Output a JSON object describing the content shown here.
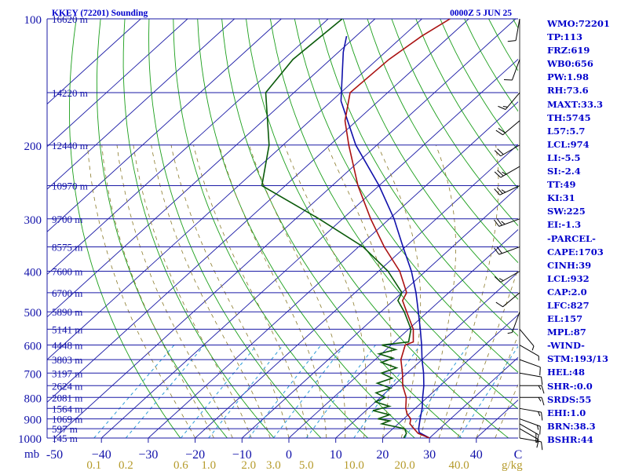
{
  "chart_data": {
    "type": "skew-t sounding",
    "title": "KKEY (72201) Sounding",
    "valid_time": "0000Z  5 JUN 25",
    "colors": {
      "background": "#ffffff",
      "isobars": "#1a1aa6",
      "skewed_isotherms": "#1a1aa6",
      "dry_adiabats": "#1a9e1a",
      "mixing_ratio": "#2a9ad6",
      "moist_adiabats": "#8a7a2a",
      "temperature": "#aa1111",
      "dewpoint": "#0a5a0a",
      "parcel": "#1010aa",
      "axis_text_blue": "#1111aa",
      "axis_text_gold": "#b59a2a",
      "wind_barbs": "#000000"
    },
    "isobars": [
      {
        "p": 100,
        "pressure_label": "100",
        "height_label": "16620 m"
      },
      {
        "p": 150,
        "pressure_label": "",
        "height_label": "14220 m"
      },
      {
        "p": 200,
        "pressure_label": "200",
        "height_label": "12440 m"
      },
      {
        "p": 250,
        "pressure_label": "",
        "height_label": "10970 m"
      },
      {
        "p": 300,
        "pressure_label": "300",
        "height_label": "9700 m"
      },
      {
        "p": 350,
        "pressure_label": "",
        "height_label": "8575 m"
      },
      {
        "p": 400,
        "pressure_label": "400",
        "height_label": "7600 m"
      },
      {
        "p": 450,
        "pressure_label": "",
        "height_label": "6700 m"
      },
      {
        "p": 500,
        "pressure_label": "500",
        "height_label": "5890 m"
      },
      {
        "p": 550,
        "pressure_label": "",
        "height_label": "5141 m"
      },
      {
        "p": 600,
        "pressure_label": "600",
        "height_label": "4448 m"
      },
      {
        "p": 650,
        "pressure_label": "",
        "height_label": "3803 m"
      },
      {
        "p": 700,
        "pressure_label": "700",
        "height_label": "3197 m"
      },
      {
        "p": 750,
        "pressure_label": "",
        "height_label": "2624 m"
      },
      {
        "p": 800,
        "pressure_label": "800",
        "height_label": "2081 m"
      },
      {
        "p": 850,
        "pressure_label": "",
        "height_label": "1564 m"
      },
      {
        "p": 900,
        "pressure_label": "900",
        "height_label": "1069 m"
      },
      {
        "p": 950,
        "pressure_label": "",
        "height_label": "597 m"
      },
      {
        "p": 1000,
        "pressure_label": "1000",
        "height_label": "145 m"
      }
    ],
    "pressure_axis_unit": "mb",
    "temperature_ticks": [
      {
        "t": -50,
        "label": "-50"
      },
      {
        "t": -40,
        "label": "−40"
      },
      {
        "t": -30,
        "label": "−30"
      },
      {
        "t": -20,
        "label": "−20"
      },
      {
        "t": -10,
        "label": "−10"
      },
      {
        "t": 0,
        "label": "0"
      },
      {
        "t": 10,
        "label": "10"
      },
      {
        "t": 20,
        "label": "20"
      },
      {
        "t": 30,
        "label": "30"
      },
      {
        "t": 40,
        "label": "40"
      }
    ],
    "temperature_unit": "C",
    "mixing_ratio_ticks": [
      {
        "w": 0.1,
        "label": "0.1"
      },
      {
        "w": 0.2,
        "label": "0.2"
      },
      {
        "w": 0.6,
        "label": "0.6"
      },
      {
        "w": 1.0,
        "label": "1.0"
      },
      {
        "w": 2.0,
        "label": "2.0"
      },
      {
        "w": 3.0,
        "label": "3.0"
      },
      {
        "w": 5.0,
        "label": "5.0"
      },
      {
        "w": 10.0,
        "label": "10.0"
      },
      {
        "w": 20.0,
        "label": "20.0"
      },
      {
        "w": 40.0,
        "label": "40.0"
      }
    ],
    "mixing_ratio_unit": "g/kg",
    "temperature_profile": [
      {
        "p": 1000,
        "t": 30
      },
      {
        "p": 975,
        "t": 26.5
      },
      {
        "p": 950,
        "t": 24.5
      },
      {
        "p": 925,
        "t": 22.5
      },
      {
        "p": 900,
        "t": 21.5
      },
      {
        "p": 875,
        "t": 19.5
      },
      {
        "p": 850,
        "t": 18.0
      },
      {
        "p": 800,
        "t": 15.5
      },
      {
        "p": 750,
        "t": 12.0
      },
      {
        "p": 700,
        "t": 9.0
      },
      {
        "p": 650,
        "t": 5.5
      },
      {
        "p": 600,
        "t": 3.0
      },
      {
        "p": 590,
        "t": 4.0
      },
      {
        "p": 550,
        "t": 1.0
      },
      {
        "p": 500,
        "t": -4.5
      },
      {
        "p": 470,
        "t": -8.0
      },
      {
        "p": 450,
        "t": -9.0
      },
      {
        "p": 400,
        "t": -15.5
      },
      {
        "p": 350,
        "t": -24.5
      },
      {
        "p": 300,
        "t": -34.0
      },
      {
        "p": 250,
        "t": -44.5
      },
      {
        "p": 200,
        "t": -56.0
      },
      {
        "p": 175,
        "t": -62.5
      },
      {
        "p": 150,
        "t": -68.0
      },
      {
        "p": 125,
        "t": -67.5
      },
      {
        "p": 110,
        "t": -66.0
      },
      {
        "p": 100,
        "t": -64.0
      }
    ],
    "dewpoint_profile": [
      {
        "p": 1000,
        "t": 24.5
      },
      {
        "p": 975,
        "t": 24.0
      },
      {
        "p": 950,
        "t": 22.5
      },
      {
        "p": 925,
        "t": 16.5
      },
      {
        "p": 910,
        "t": 17.5
      },
      {
        "p": 900,
        "t": 14.5
      },
      {
        "p": 880,
        "t": 16.0
      },
      {
        "p": 860,
        "t": 11.5
      },
      {
        "p": 840,
        "t": 14.0
      },
      {
        "p": 820,
        "t": 10.0
      },
      {
        "p": 800,
        "t": 11.0
      },
      {
        "p": 780,
        "t": 8.0
      },
      {
        "p": 760,
        "t": 10.0
      },
      {
        "p": 740,
        "t": 6.0
      },
      {
        "p": 720,
        "t": 8.0
      },
      {
        "p": 700,
        "t": 4.5
      },
      {
        "p": 680,
        "t": 6.5
      },
      {
        "p": 660,
        "t": 2.0
      },
      {
        "p": 645,
        "t": 3.5
      },
      {
        "p": 630,
        "t": -0.5
      },
      {
        "p": 615,
        "t": 2.0
      },
      {
        "p": 600,
        "t": -2.0
      },
      {
        "p": 590,
        "t": 3.0
      },
      {
        "p": 550,
        "t": 0.5
      },
      {
        "p": 500,
        "t": -5.0
      },
      {
        "p": 470,
        "t": -9.0
      },
      {
        "p": 450,
        "t": -10.0
      },
      {
        "p": 400,
        "t": -18.0
      },
      {
        "p": 350,
        "t": -29.0
      },
      {
        "p": 300,
        "t": -45.0
      },
      {
        "p": 250,
        "t": -65.0
      },
      {
        "p": 200,
        "t": -73.0
      },
      {
        "p": 150,
        "t": -86.0
      },
      {
        "p": 125,
        "t": -88.0
      },
      {
        "p": 100,
        "t": -87.0
      }
    ],
    "parcel_profile": [
      {
        "p": 1000,
        "t": 30
      },
      {
        "p": 970,
        "t": 26.5
      },
      {
        "p": 950,
        "t": 25.5
      },
      {
        "p": 900,
        "t": 23.5
      },
      {
        "p": 850,
        "t": 21.5
      },
      {
        "p": 800,
        "t": 19.0
      },
      {
        "p": 750,
        "t": 16.5
      },
      {
        "p": 700,
        "t": 13.5
      },
      {
        "p": 650,
        "t": 10.0
      },
      {
        "p": 600,
        "t": 6.5
      },
      {
        "p": 550,
        "t": 2.5
      },
      {
        "p": 500,
        "t": -2.0
      },
      {
        "p": 450,
        "t": -7.0
      },
      {
        "p": 400,
        "t": -13.0
      },
      {
        "p": 350,
        "t": -20.5
      },
      {
        "p": 300,
        "t": -29.0
      },
      {
        "p": 250,
        "t": -40.0
      },
      {
        "p": 200,
        "t": -54.5
      },
      {
        "p": 157,
        "t": -68.0
      },
      {
        "p": 120,
        "t": -79.0
      },
      {
        "p": 110,
        "t": -82.0
      }
    ],
    "wind_barbs": [
      {
        "p": 1000,
        "dir": 100,
        "spd": 10
      },
      {
        "p": 950,
        "dir": 120,
        "spd": 15
      },
      {
        "p": 925,
        "dir": 120,
        "spd": 15
      },
      {
        "p": 900,
        "dir": 110,
        "spd": 15
      },
      {
        "p": 850,
        "dir": 100,
        "spd": 15
      },
      {
        "p": 800,
        "dir": 90,
        "spd": 15
      },
      {
        "p": 750,
        "dir": 90,
        "spd": 15
      },
      {
        "p": 700,
        "dir": 100,
        "spd": 10
      },
      {
        "p": 650,
        "dir": 110,
        "spd": 10
      },
      {
        "p": 600,
        "dir": 120,
        "spd": 5
      },
      {
        "p": 550,
        "dir": 140,
        "spd": 5
      },
      {
        "p": 500,
        "dir": 200,
        "spd": 5
      },
      {
        "p": 450,
        "dir": 230,
        "spd": 10
      },
      {
        "p": 400,
        "dir": 240,
        "spd": 15
      },
      {
        "p": 350,
        "dir": 250,
        "spd": 20
      },
      {
        "p": 300,
        "dir": 250,
        "spd": 25
      },
      {
        "p": 250,
        "dir": 245,
        "spd": 25
      },
      {
        "p": 225,
        "dir": 240,
        "spd": 25
      },
      {
        "p": 200,
        "dir": 240,
        "spd": 20
      },
      {
        "p": 175,
        "dir": 230,
        "spd": 20
      },
      {
        "p": 150,
        "dir": 220,
        "spd": 15
      },
      {
        "p": 125,
        "dir": 200,
        "spd": 10
      },
      {
        "p": 100,
        "dir": 190,
        "spd": 10
      }
    ],
    "indices": [
      "WMO:72201",
      "TP:113",
      "FRZ:619",
      "WB0:656",
      "PW:1.98",
      "RH:73.6",
      "MAXT:33.3",
      "TH:5745",
      "L57:5.7",
      "LCL:974",
      "LI:-5.5",
      "SI:-2.4",
      "TT:49",
      "KI:31",
      "SW:225",
      "EI:-1.3",
      "-PARCEL-",
      "CAPE:1703",
      "CINH:39",
      "LCL:932",
      "CAP:2.0",
      "LFC:827",
      "EL:157",
      "MPL:87",
      "-WIND-",
      "STM:193/13",
      "HEL:48",
      "SHR-:0.0",
      "SRDS:55",
      "EHI:1.0",
      "BRN:38.3",
      "BSHR:44"
    ]
  }
}
